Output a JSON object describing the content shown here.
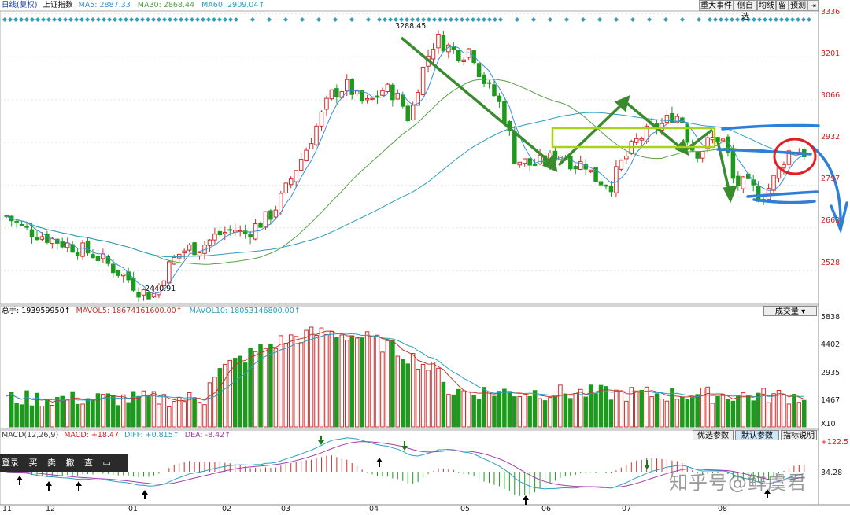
{
  "toolbar": {
    "buttons": [
      "重大事件",
      "侧自选",
      "均线",
      "留",
      "预测"
    ],
    "exit_icon": "exit-icon"
  },
  "price_header": {
    "chart_label": "日线(复权)",
    "index_name": "上证指数",
    "ma5": "MA5: 2887.33",
    "ma30": "MA30: 2868.44",
    "ma60": "MA60: 2909.04↑"
  },
  "price_axis": [
    "3336",
    "3201",
    "3066",
    "2932",
    "2797",
    "2663",
    "2528"
  ],
  "annotations": {
    "high": "3288.45",
    "low": "2440.91"
  },
  "volume_header": {
    "total": "总手: 193959950↑",
    "mavol5": "MAVOL5: 18674161600.00↑",
    "mavol10": "MAVOL10: 18053146800.00↑",
    "selector": "成交量"
  },
  "volume_axis": [
    "5838",
    "4402",
    "2935",
    "1467",
    "X10"
  ],
  "macd_header": {
    "label": "MACD(12,26,9)",
    "macd": "MACD: +18.47",
    "diff": "DIFF: +0.815↑",
    "dea": "DEA: -8.42↑"
  },
  "macd_buttons": [
    "优选参数",
    "默认参数",
    "指标说明"
  ],
  "macd_axis": {
    "top": "+122.5",
    "mid": "34.28"
  },
  "months": [
    "11",
    "12",
    "01",
    "02",
    "03",
    "04",
    "05",
    "06",
    "07",
    "08"
  ],
  "popup": [
    "登录",
    "买",
    "卖",
    "撤",
    "查"
  ],
  "watermark": "知乎号@鲜虞君",
  "colors": {
    "up": "#d22b2b",
    "down": "#1d9a1d",
    "ma5": "#3a8fd8",
    "ma30": "#55a046",
    "ma60": "#2a9ec0",
    "arrow_green": "#3a8a2e",
    "arrow_blue": "#2f7fd6",
    "circle_red": "#e02020",
    "box_yellow": "#a8d11a"
  },
  "chart_data": [
    {
      "type": "candlestick",
      "title": "上证指数 日线(复权)",
      "ylim": [
        2440,
        3340
      ],
      "y_ticks": [
        3336,
        3201,
        3066,
        2932,
        2797,
        2663,
        2528
      ],
      "x_months": [
        "11",
        "12",
        "01",
        "02",
        "03",
        "04",
        "05",
        "06",
        "07",
        "08"
      ],
      "close_path": [
        2700,
        2680,
        2660,
        2650,
        2640,
        2630,
        2620,
        2610,
        2600,
        2590,
        2580,
        2560,
        2540,
        2520,
        2500,
        2470,
        2455,
        2460,
        2520,
        2560,
        2590,
        2600,
        2600,
        2620,
        2640,
        2650,
        2660,
        2640,
        2660,
        2680,
        2700,
        2740,
        2790,
        2850,
        2900,
        2960,
        3020,
        3080,
        3100,
        3110,
        3070,
        3050,
        3070,
        3100,
        3090,
        3060,
        3000,
        3120,
        3200,
        3260,
        3240,
        3220,
        3210,
        3230,
        3150,
        3100,
        3070,
        3000,
        2880,
        2870,
        2860,
        2870,
        2880,
        2900,
        2880,
        2860,
        2870,
        2820,
        2810,
        2800,
        2860,
        2900,
        2940,
        2960,
        2980,
        2990,
        3020,
        3010,
        2920,
        2900,
        2930,
        2950,
        2930,
        2800,
        2800,
        2790,
        2760,
        2790,
        2840,
        2900,
        2910,
        2900
      ],
      "series": [
        {
          "name": "MA5",
          "value": 2887.33
        },
        {
          "name": "MA30",
          "value": 2868.44
        },
        {
          "name": "MA60",
          "value": 2909.04
        }
      ],
      "annotations": [
        {
          "label": "3288.45",
          "kind": "high"
        },
        {
          "label": "2440.91",
          "kind": "low"
        }
      ]
    },
    {
      "type": "bar",
      "title": "成交量",
      "y_ticks": [
        5838,
        4402,
        2935,
        1467
      ],
      "y_unit": "X10",
      "series": [
        {
          "name": "MAVOL5",
          "value": 18674161600.0
        },
        {
          "name": "MAVOL10",
          "value": 18053146800.0
        }
      ]
    },
    {
      "type": "bar",
      "title": "MACD(12,26,9)",
      "series": [
        {
          "name": "MACD",
          "value": 18.47
        },
        {
          "name": "DIFF",
          "value": 0.815
        },
        {
          "name": "DEA",
          "value": -8.42
        }
      ],
      "y_ticks": [
        122.5,
        34.28
      ]
    }
  ]
}
